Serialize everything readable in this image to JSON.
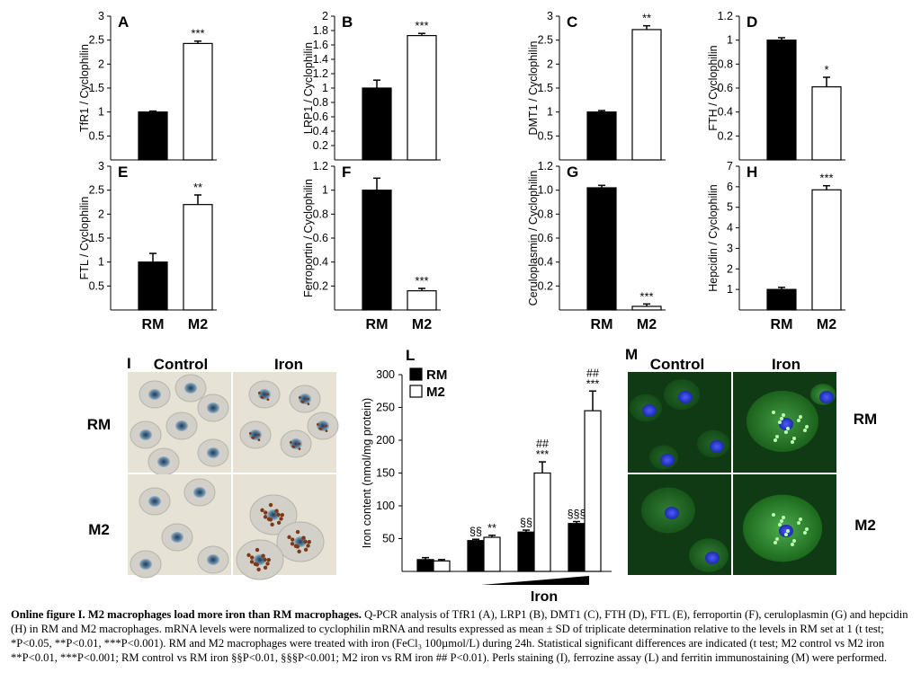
{
  "bar_panels": [
    {
      "letter": "A",
      "ylabel": "TfR1 / Cyclophilin",
      "ylim": [
        0,
        3
      ],
      "yticks": [
        "0.5",
        "1",
        "1.5",
        "2",
        "2.5",
        "3"
      ],
      "ytick_values": [
        0.5,
        1,
        1.5,
        2,
        2.5,
        3
      ],
      "values": [
        1.0,
        2.43
      ],
      "errors": [
        0.02,
        0.05
      ],
      "sig": "***",
      "categories": []
    },
    {
      "letter": "B",
      "ylabel": "LRP1 / Cyclophilin",
      "ylim": [
        0,
        2
      ],
      "yticks": [
        "0.2",
        "0.4",
        "0.6",
        "0.8",
        "1",
        "1.2",
        "1.4",
        "1.6",
        "1.8",
        "2"
      ],
      "ytick_values": [
        0.2,
        0.4,
        0.6,
        0.8,
        1,
        1.2,
        1.4,
        1.6,
        1.8,
        2
      ],
      "values": [
        1.0,
        1.73
      ],
      "errors": [
        0.11,
        0.03
      ],
      "sig": "***",
      "categories": []
    },
    {
      "letter": "C",
      "ylabel": "DMT1 / Cyclophilin",
      "ylim": [
        0,
        3
      ],
      "yticks": [
        "0.5",
        "1",
        "1.5",
        "2",
        "2.5",
        "3"
      ],
      "ytick_values": [
        0.5,
        1,
        1.5,
        2,
        2.5,
        3
      ],
      "values": [
        1.0,
        2.72
      ],
      "errors": [
        0.03,
        0.08
      ],
      "sig": "**",
      "categories": []
    },
    {
      "letter": "D",
      "ylabel": "FTH / Cyclophilin",
      "ylim": [
        0,
        1.2
      ],
      "yticks": [
        "0.2",
        "0.4",
        "0.6",
        "0.8",
        "1",
        "1.2"
      ],
      "ytick_values": [
        0.2,
        0.4,
        0.6,
        0.8,
        1,
        1.2
      ],
      "values": [
        1.0,
        0.61
      ],
      "errors": [
        0.02,
        0.08
      ],
      "sig": "*",
      "categories": []
    },
    {
      "letter": "E",
      "ylabel": "FTL / Cyclophilin",
      "ylim": [
        0,
        3
      ],
      "yticks": [
        "0.5",
        "1",
        "1.5",
        "2",
        "2.5",
        "3"
      ],
      "ytick_values": [
        0.5,
        1,
        1.5,
        2,
        2.5,
        3
      ],
      "values": [
        1.0,
        2.2
      ],
      "errors": [
        0.18,
        0.2
      ],
      "sig": "**",
      "categories": [
        "RM",
        "M2"
      ]
    },
    {
      "letter": "F",
      "ylabel": "Ferroportin / Cyclophilin",
      "ylim": [
        0,
        1.2
      ],
      "yticks": [
        "0.2",
        "0.4",
        "0.6",
        "0.8",
        "1",
        "1.2"
      ],
      "ytick_values": [
        0.2,
        0.4,
        0.6,
        0.8,
        1,
        1.2
      ],
      "values": [
        1.0,
        0.16
      ],
      "errors": [
        0.1,
        0.02
      ],
      "sig": "***",
      "categories": [
        "RM",
        "M2"
      ]
    },
    {
      "letter": "G",
      "ylabel": "Ceruloplasmin / Cyclophilin",
      "ylim": [
        0,
        1.2
      ],
      "yticks": [
        "0.2",
        "0.4",
        "0.6",
        "0.8",
        "1.0",
        "1.2"
      ],
      "ytick_values": [
        0.2,
        0.4,
        0.6,
        0.8,
        1,
        1.2
      ],
      "values": [
        1.02,
        0.03
      ],
      "errors": [
        0.02,
        0.02
      ],
      "sig": "***",
      "categories": [
        "RM",
        "M2"
      ]
    },
    {
      "letter": "H",
      "ylabel": "Hepcidin / Cyclophilin",
      "ylim": [
        0,
        7
      ],
      "yticks": [
        "1",
        "2",
        "3",
        "4",
        "5",
        "6",
        "7"
      ],
      "ytick_values": [
        1,
        2,
        3,
        4,
        5,
        6,
        7
      ],
      "values": [
        1.0,
        5.85
      ],
      "errors": [
        0.1,
        0.2
      ],
      "sig": "***",
      "categories": [
        "RM",
        "M2"
      ]
    }
  ],
  "panel_i": {
    "letter": "I",
    "col_labels": [
      "Control",
      "Iron"
    ],
    "row_labels": [
      "RM",
      "M2"
    ]
  },
  "panel_m": {
    "letter": "M",
    "col_labels": [
      "Control",
      "Iron"
    ],
    "row_labels": [
      "RM",
      "M2"
    ]
  },
  "chart_data": {
    "type": "bar",
    "letter": "L",
    "ylabel": "Iron content (nmol/mg protein)",
    "xlabel": "Iron",
    "ylim": [
      0,
      300
    ],
    "yticks": [
      "50",
      "100",
      "150",
      "200",
      "250",
      "300"
    ],
    "ytick_values": [
      50,
      100,
      150,
      200,
      250,
      300
    ],
    "legend": [
      "RM",
      "M2"
    ],
    "colors": {
      "RM": "#000000",
      "M2": "#ffffff"
    },
    "series": [
      {
        "name": "RM",
        "values": [
          18,
          47,
          60,
          73
        ],
        "errors": [
          3,
          2,
          3,
          3
        ],
        "sig": [
          "",
          "§§",
          "§§",
          "§§§"
        ]
      },
      {
        "name": "M2",
        "values": [
          16,
          52,
          150,
          245
        ],
        "errors": [
          2,
          3,
          17,
          30
        ],
        "sig": [
          "",
          "**",
          "##\n***",
          "##\n***"
        ]
      }
    ]
  },
  "caption": {
    "bold": "Online figure I. M2 macrophages load more iron than RM macrophages.",
    "text": " Q-PCR analysis of TfR1 (A), LRP1 (B), DMT1 (C), FTH (D), FTL (E), ferroportin (F), ceruloplasmin (G) and hepcidin (H) in RM and M2 macrophages. mRNA levels were normalized to cyclophilin mRNA and results expressed as mean ± SD of triplicate determination relative to the levels in RM set at 1 (t test; *P<0.05, **P<0.01, ***P<0.001). RM and M2 macrophages were treated with iron (FeCl₃ 100µmol/L) during 24h. Statistical significant differences are indicated (t test; M2 control vs M2 iron **P<0.01, ***P<0.001; RM control vs RM iron §§P<0.01, §§§P<0.001; M2 iron vs RM iron ## P<0.01). Perls staining (I), ferrozine assay (L) and ferritin immunostaining (M) were performed."
  }
}
